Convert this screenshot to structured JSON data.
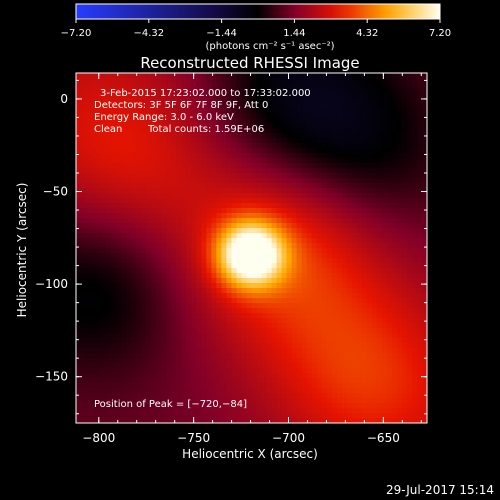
{
  "chart_data": {
    "type": "heatmap",
    "title": "Reconstructed RHESSI Image",
    "xlabel": "Heliocentric X (arcsec)",
    "ylabel": "Heliocentric Y (arcsec)",
    "xlim": [
      -812,
      -627
    ],
    "ylim": [
      -175,
      14
    ],
    "x_ticks": [
      -800,
      -750,
      -700,
      -650
    ],
    "y_ticks": [
      0,
      -50,
      -100,
      -150
    ],
    "x_tick_labels": [
      "−800",
      "−750",
      "−700",
      "−650"
    ],
    "y_tick_labels": [
      "0",
      "−50",
      "−100",
      "−150"
    ],
    "colorbar": {
      "range": [
        -7.2,
        7.2
      ],
      "ticks": [
        -7.2,
        -4.32,
        -1.44,
        1.44,
        4.32,
        7.2
      ],
      "tick_labels": [
        "−7.20",
        "−4.32",
        "−1.44",
        "1.44",
        "4.32",
        "7.20"
      ],
      "unit_label": "(photons cm⁻² s⁻¹ asec⁻²)"
    },
    "annotations": {
      "time_range": "3-Feb-2015 17:23:02.000 to 17:33:02.000",
      "detectors": "Detectors: 3F 5F 6F 7F 8F 9F, Att 0",
      "energy_range": "Energy Range: 3.0 - 6.0 keV",
      "algorithm": "Clean",
      "total_counts": "Total counts: 1.59E+06",
      "peak": "Position of Peak = [−720,−84]"
    },
    "peak": {
      "x": -720,
      "y": -84,
      "value": 7.2
    },
    "background_level": 1.2,
    "ridges": [
      {
        "x": -700,
        "y": -80,
        "amplitude": 1.8
      },
      {
        "x": -660,
        "y": -150,
        "amplitude": 1.5
      },
      {
        "x": -790,
        "y": -30,
        "amplitude": 1.2
      }
    ],
    "troughs": [
      {
        "x": -800,
        "y": -100,
        "amplitude": -1.6
      },
      {
        "x": -700,
        "y": 0,
        "amplitude": -1.6
      },
      {
        "x": -660,
        "y": -30,
        "amplitude": -1.2
      }
    ]
  },
  "footer": {
    "date": "29-Jul-2017 15:14"
  }
}
